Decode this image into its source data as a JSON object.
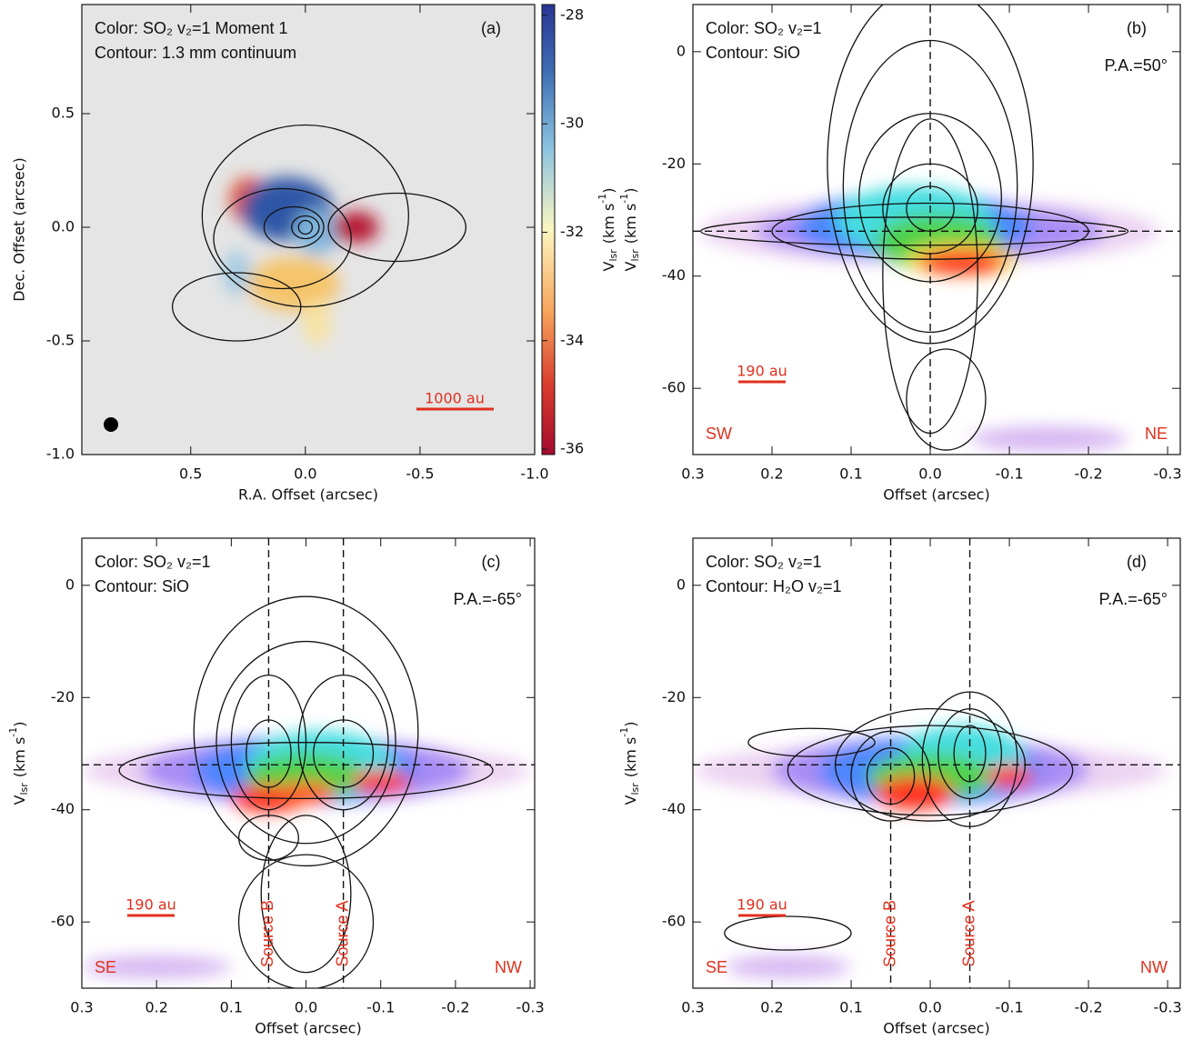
{
  "chart_data": [
    {
      "type": "map",
      "panel_label": "(a)",
      "labels": [
        "Color: SO₂ v₂=1 Moment 1",
        "Contour: 1.3 mm continuum"
      ],
      "scalebar": "1000 au",
      "xlabel": "R.A. Offset (arcsec)",
      "ylabel": "Dec. Offset (arcsec)",
      "xlim": [
        0.975,
        -1.0
      ],
      "ylim": [
        -1.0,
        0.98
      ],
      "xticks": [
        0.5,
        {
          "value": 0,
          "label": "0.0"
        },
        -0.5,
        {
          "value": -1,
          "label": "-1.0"
        }
      ],
      "yticks": [
        0.5,
        {
          "value": 0,
          "label": "0.0"
        },
        -0.5,
        {
          "value": -1,
          "label": "-1.0"
        }
      ],
      "colorbar": {
        "clim": [
          -36.1,
          -27.8
        ],
        "ticks": [
          -28,
          -30,
          -32,
          -34,
          -36
        ],
        "label": {
          "symbol": "V",
          "sub": "lsr",
          "unit": "(km s",
          "sup": "-1",
          "close": ")"
        }
      }
    },
    {
      "type": "pv",
      "panel_label": "(b)",
      "labels": [
        "Color: SO₂ v₂=1",
        "Contour: SiO"
      ],
      "pa": "P.A.=50°",
      "scalebar": "190 au",
      "left_dir": "SW",
      "right_dir": "NE",
      "xlabel": "Offset (arcsec)",
      "ylabel": {
        "symbol": "V",
        "sub": "lsr",
        "unit": "(km s",
        "sup": "-1",
        "close": ")"
      },
      "xlim": [
        0.3,
        -0.316
      ],
      "ylim": [
        -71.8,
        8.4
      ],
      "xticks": [
        0.3,
        0.2,
        0.1,
        {
          "value": 0,
          "label": "0.0"
        },
        -0.1,
        -0.2,
        -0.3
      ],
      "yticks": [
        -60,
        -40,
        -20,
        0
      ],
      "vlines": [
        0
      ],
      "hline": -32
    },
    {
      "type": "pv",
      "panel_label": "(c)",
      "labels": [
        "Color: SO₂ v₂=1",
        "Contour: SiO"
      ],
      "pa": "P.A.=-65°",
      "scalebar": "190 au",
      "left_dir": "SE",
      "right_dir": "NW",
      "source_labels": [
        "Source B",
        "Source A"
      ],
      "xlabel": "Offset (arcsec)",
      "ylabel": {
        "symbol": "V",
        "sub": "lsr",
        "unit": "(km s",
        "sup": "-1",
        "close": ")"
      },
      "xlim": [
        0.3,
        -0.306
      ],
      "ylim": [
        -71.8,
        8.4
      ],
      "xticks": [
        0.3,
        0.2,
        0.1,
        {
          "value": 0,
          "label": "0.0"
        },
        -0.1,
        -0.2,
        -0.3
      ],
      "yticks": [
        -60,
        -40,
        -20,
        0
      ],
      "vlines": [
        0.05,
        -0.05
      ],
      "hline": -32
    },
    {
      "type": "pv",
      "panel_label": "(d)",
      "labels": [
        "Color: SO₂ v₂=1",
        "Contour: H₂O v₂=1"
      ],
      "pa": "P.A.=-65°",
      "scalebar": "190 au",
      "left_dir": "SE",
      "right_dir": "NW",
      "source_labels": [
        "Source B",
        "Source A"
      ],
      "xlabel": "Offset (arcsec)",
      "ylabel": {
        "symbol": "V",
        "sub": "lsr",
        "unit": "(km s",
        "sup": "-1",
        "close": ")"
      },
      "xlim": [
        0.3,
        -0.316
      ],
      "ylim": [
        -71.8,
        8.4
      ],
      "xticks": [
        0.3,
        0.2,
        0.1,
        {
          "value": 0,
          "label": "0.0"
        },
        -0.1,
        -0.2,
        -0.3
      ],
      "yticks": [
        -60,
        -40,
        -20,
        0
      ],
      "vlines": [
        0.05,
        -0.05
      ],
      "hline": -32
    }
  ]
}
